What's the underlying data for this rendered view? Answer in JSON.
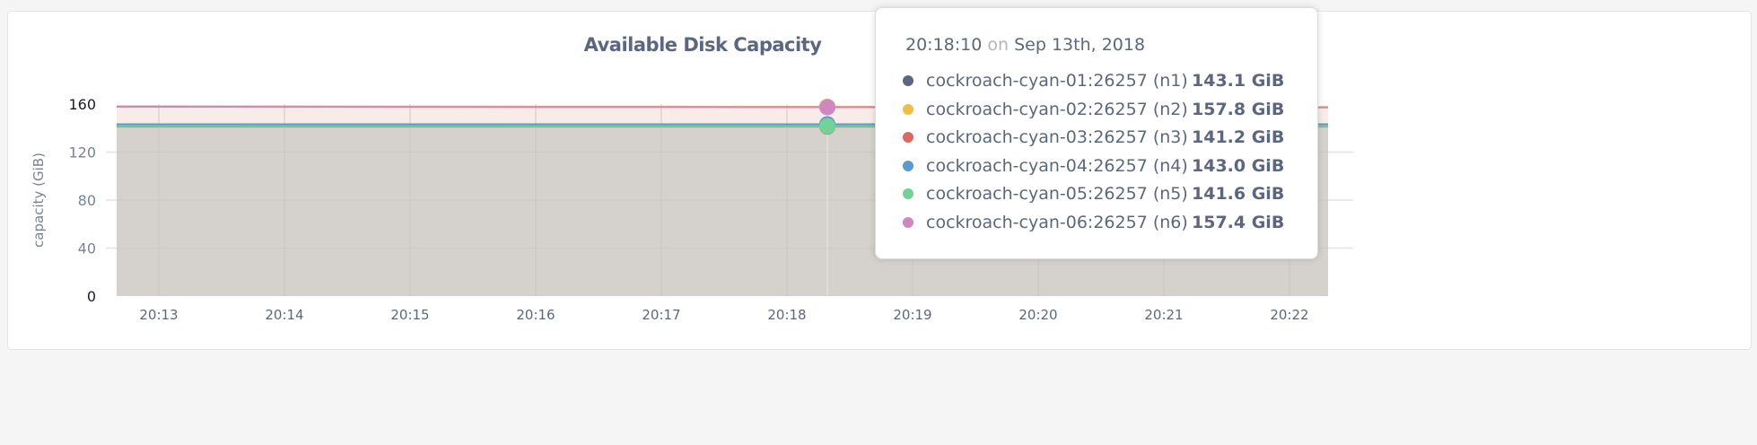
{
  "chart_data": {
    "type": "area",
    "title": "Available Disk Capacity",
    "ylabel": "capacity (GiB)",
    "xlabel": "",
    "ylim": [
      0,
      160
    ],
    "yticks": [
      0,
      40,
      80,
      120,
      160
    ],
    "xticks": [
      "20:13",
      "20:14",
      "20:15",
      "20:16",
      "20:17",
      "20:18",
      "20:19",
      "20:20",
      "20:21",
      "20:22"
    ],
    "grid": true,
    "series": [
      {
        "name": "cockroach-cyan-01:26257 (n1)",
        "color": "#5b6782",
        "values": [
          143.1,
          143.1,
          143.1,
          143.1,
          143.1,
          143.1,
          143.1,
          143.1,
          143.1,
          143.1
        ]
      },
      {
        "name": "cockroach-cyan-02:26257 (n2)",
        "color": "#f0bd45",
        "values": [
          158.2,
          158.1,
          158.0,
          157.9,
          157.9,
          157.8,
          157.8,
          157.7,
          157.7,
          157.6
        ]
      },
      {
        "name": "cockroach-cyan-03:26257 (n3)",
        "color": "#e0675f",
        "values": [
          141.2,
          141.2,
          141.2,
          141.2,
          141.2,
          141.2,
          141.2,
          141.2,
          141.2,
          141.2
        ]
      },
      {
        "name": "cockroach-cyan-04:26257 (n4)",
        "color": "#5a9bd2",
        "values": [
          143.0,
          143.0,
          143.0,
          143.0,
          143.0,
          143.0,
          143.0,
          143.0,
          143.0,
          143.0
        ]
      },
      {
        "name": "cockroach-cyan-05:26257 (n5)",
        "color": "#72d396",
        "values": [
          141.6,
          141.6,
          141.6,
          141.6,
          141.6,
          141.6,
          141.6,
          141.6,
          141.6,
          141.6
        ]
      },
      {
        "name": "cockroach-cyan-06:26257 (n6)",
        "color": "#cf86c1",
        "values": [
          157.8,
          157.7,
          157.6,
          157.5,
          157.5,
          157.4,
          157.4,
          157.3,
          157.3,
          157.2
        ]
      }
    ]
  },
  "tooltip": {
    "time": "20:18:10",
    "on": "on",
    "date": "Sep 13th, 2018",
    "rows": [
      {
        "name": "cockroach-cyan-01:26257 (n1)",
        "value": "143.1 GiB"
      },
      {
        "name": "cockroach-cyan-02:26257 (n2)",
        "value": "157.8 GiB"
      },
      {
        "name": "cockroach-cyan-03:26257 (n3)",
        "value": "141.2 GiB"
      },
      {
        "name": "cockroach-cyan-04:26257 (n4)",
        "value": "143.0 GiB"
      },
      {
        "name": "cockroach-cyan-05:26257 (n5)",
        "value": "141.6 GiB"
      },
      {
        "name": "cockroach-cyan-06:26257 (n6)",
        "value": "157.4 GiB"
      }
    ]
  }
}
